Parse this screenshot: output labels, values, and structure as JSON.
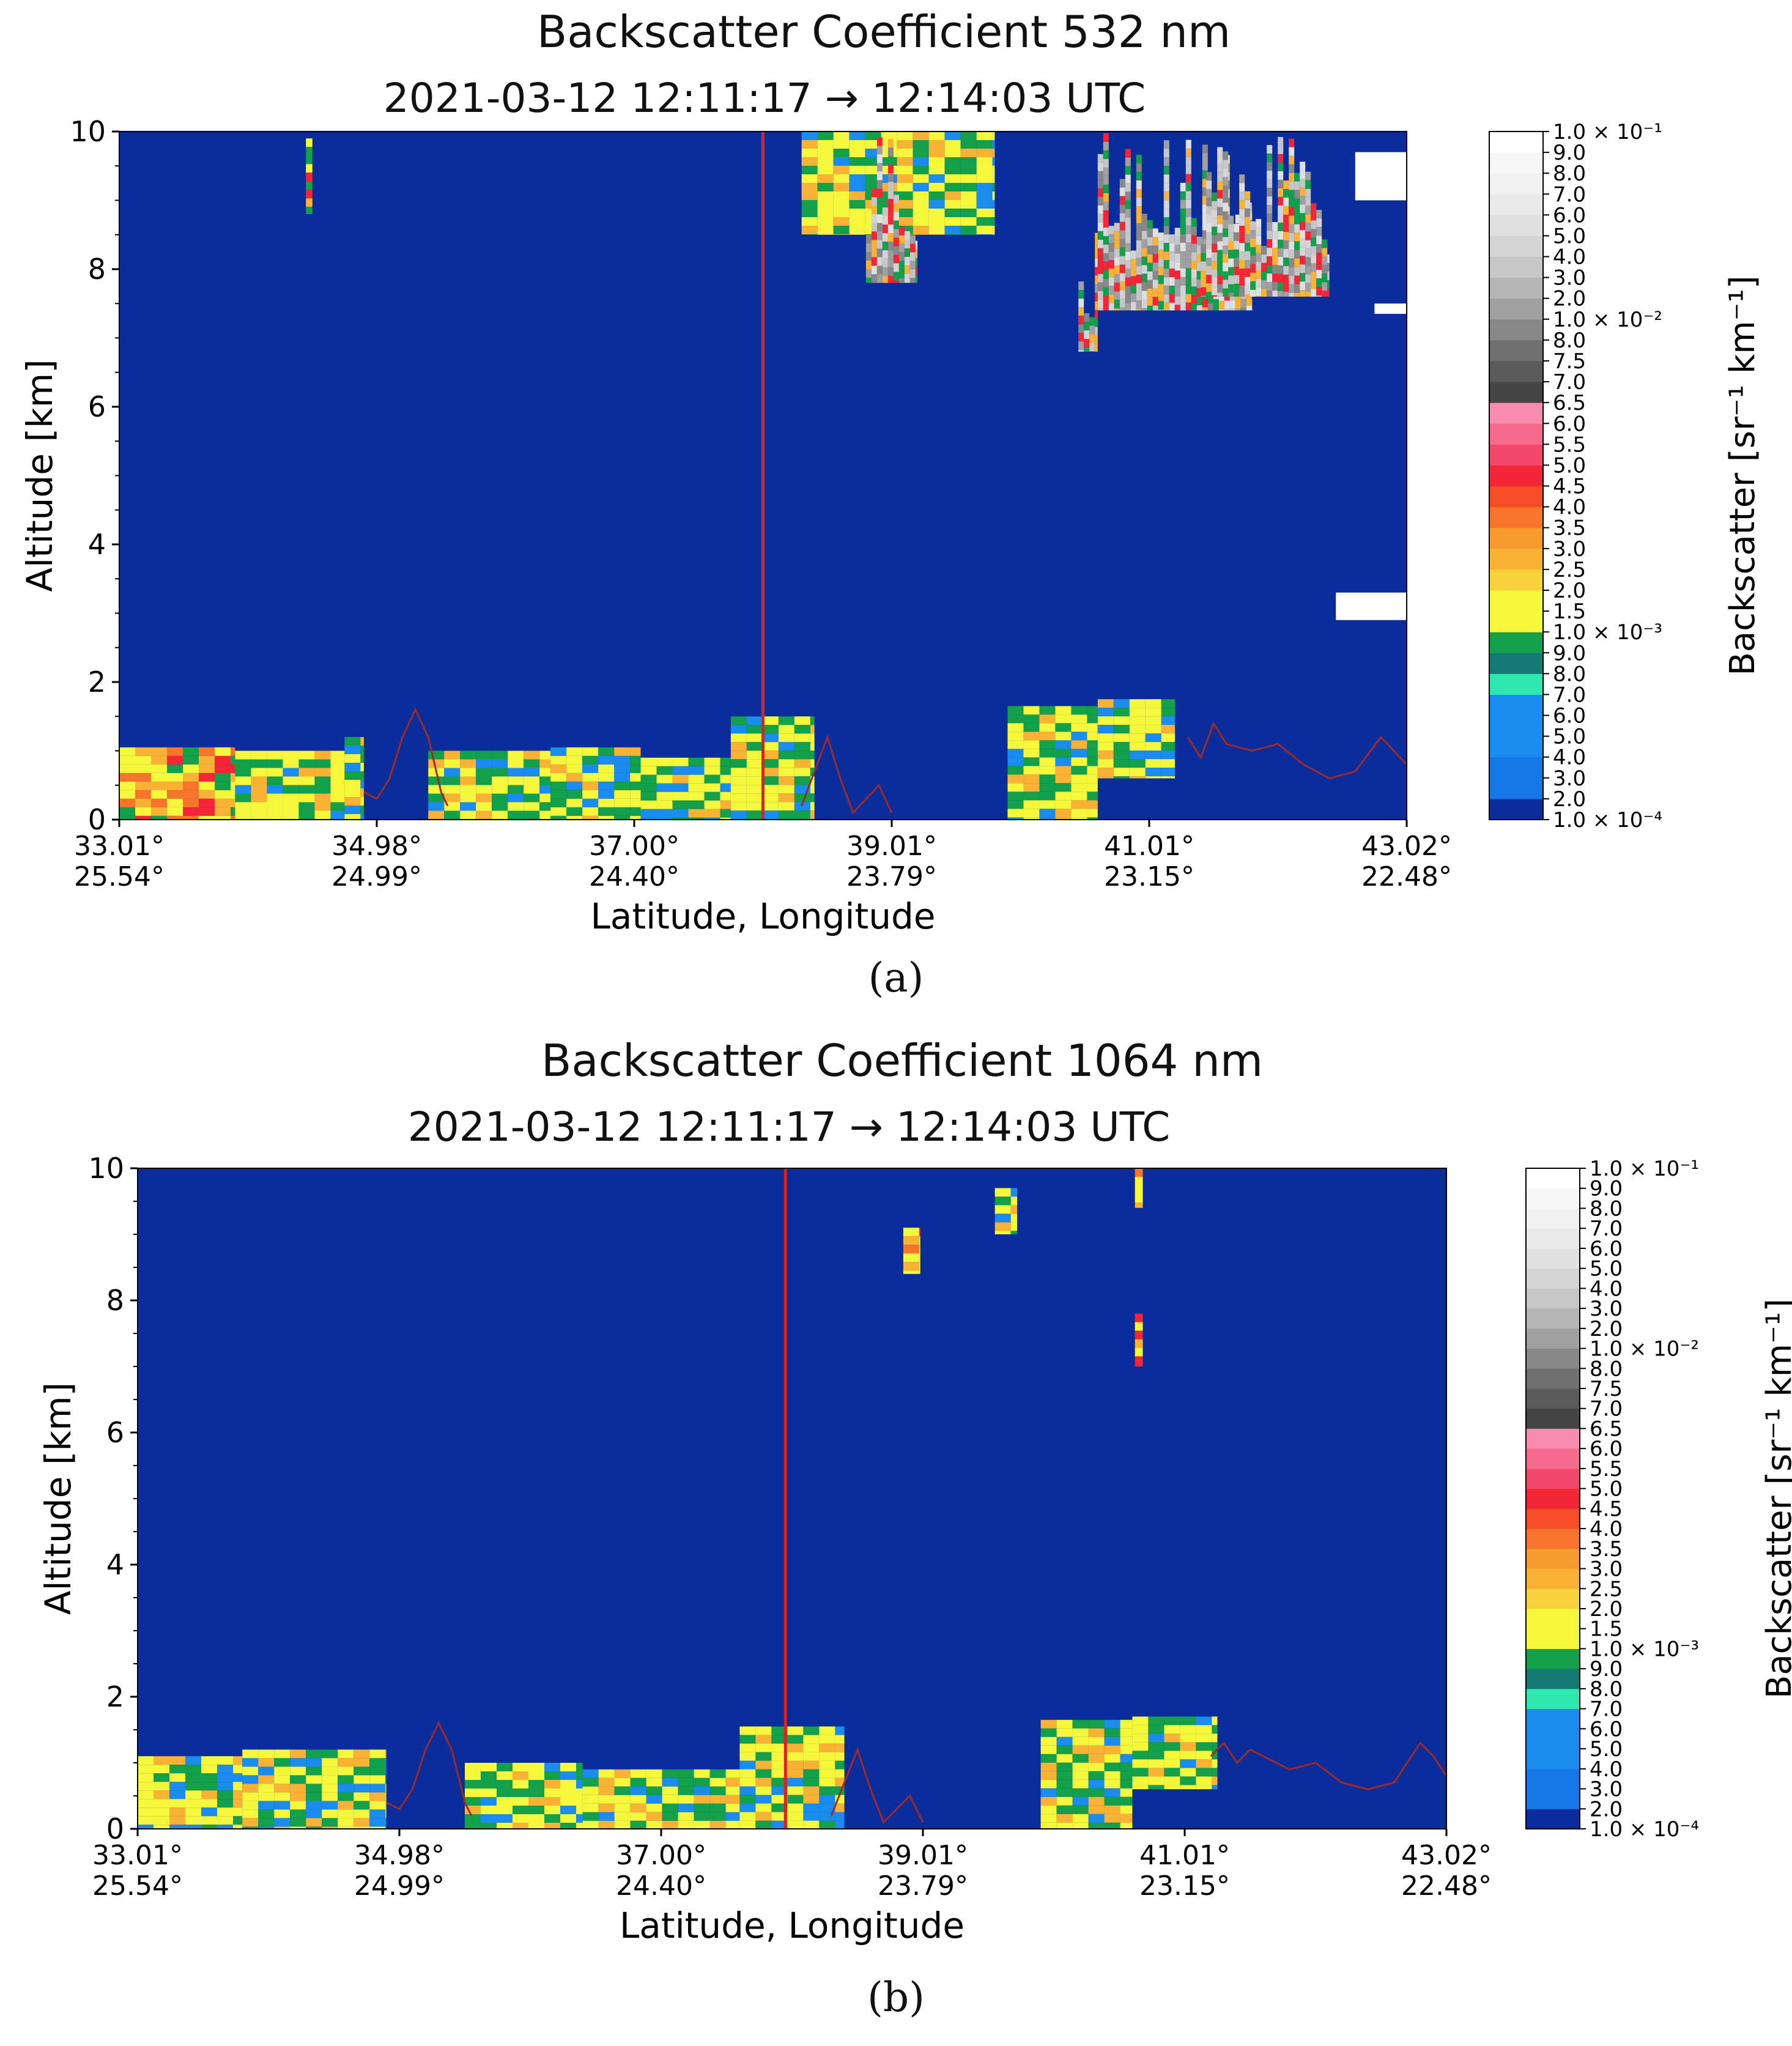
{
  "colors": {
    "background": "#0a2d9b",
    "profile_line": "#9c2a2a",
    "marker_line": "#e02020"
  },
  "colorbar": {
    "label": "Backscatter [sr⁻¹ km⁻¹]",
    "levels": [
      {
        "label": "1.0 × 10⁻⁴",
        "color": "#0a2d9b"
      },
      {
        "label": "2.0",
        "color": "#0a2d9b"
      },
      {
        "label": "3.0",
        "color": "#1477e6"
      },
      {
        "label": "4.0",
        "color": "#1477e6"
      },
      {
        "label": "5.0",
        "color": "#1a8cf0"
      },
      {
        "label": "6.0",
        "color": "#1a8cf0"
      },
      {
        "label": "7.0",
        "color": "#1a8cf0"
      },
      {
        "label": "8.0",
        "color": "#2ee8b0"
      },
      {
        "label": "9.0",
        "color": "#137a73"
      },
      {
        "label": "1.0 × 10⁻³",
        "color": "#12a04a"
      },
      {
        "label": "1.5",
        "color": "#f4f73a"
      },
      {
        "label": "2.0",
        "color": "#f4f73a"
      },
      {
        "label": "2.5",
        "color": "#f7d23a"
      },
      {
        "label": "3.0",
        "color": "#f9b234"
      },
      {
        "label": "3.5",
        "color": "#f89a2e"
      },
      {
        "label": "4.0",
        "color": "#f6752a"
      },
      {
        "label": "4.5",
        "color": "#f44d27"
      },
      {
        "label": "5.0",
        "color": "#f22636"
      },
      {
        "label": "5.5",
        "color": "#f4486a"
      },
      {
        "label": "6.0",
        "color": "#f66a8c"
      },
      {
        "label": "6.5",
        "color": "#f98ab0"
      },
      {
        "label": "7.0",
        "color": "#444444"
      },
      {
        "label": "7.5",
        "color": "#5a5a5a"
      },
      {
        "label": "8.0",
        "color": "#707070"
      },
      {
        "label": "1.0 × 10⁻²",
        "color": "#888888"
      },
      {
        "label": "2.0",
        "color": "#a0a0a0"
      },
      {
        "label": "3.0",
        "color": "#b5b5b5"
      },
      {
        "label": "4.0",
        "color": "#c6c6c6"
      },
      {
        "label": "5.0",
        "color": "#d4d4d4"
      },
      {
        "label": "6.0",
        "color": "#e0e0e0"
      },
      {
        "label": "7.0",
        "color": "#e9e9e9"
      },
      {
        "label": "8.0",
        "color": "#f1f1f1"
      },
      {
        "label": "9.0",
        "color": "#f7f7f7"
      },
      {
        "label": "1.0 × 10⁻¹",
        "color": "#ffffff"
      }
    ]
  },
  "chart_data": [
    {
      "panel": "(a)",
      "type": "heatmap",
      "title": "Backscatter Coefficient 532 nm",
      "subtitle": "2021-03-12 12:11:17 → 12:14:03 UTC",
      "xlabel": "Latitude, Longitude",
      "ylabel": "Altitude [km]",
      "xlim": [
        0,
        10
      ],
      "ylim": [
        0,
        10
      ],
      "yticks": [
        "0",
        "2",
        "4",
        "6",
        "8",
        "10"
      ],
      "xticks": [
        {
          "pos": 0,
          "lat": "33.01°",
          "lon": "25.54°"
        },
        {
          "pos": 2,
          "lat": "34.98°",
          "lon": "24.99°"
        },
        {
          "pos": 4,
          "lat": "37.00°",
          "lon": "24.40°"
        },
        {
          "pos": 6,
          "lat": "39.01°",
          "lon": "23.79°"
        },
        {
          "pos": 8,
          "lat": "41.01°",
          "lon": "23.15°"
        },
        {
          "pos": 10,
          "lat": "43.02°",
          "lon": "22.48°"
        }
      ],
      "marker_x": 5.0,
      "cloud_top_profile": {
        "x": [
          1.9,
          2.0,
          2.1,
          2.2,
          2.3,
          2.4,
          2.5,
          2.55,
          5.3,
          5.5,
          5.6,
          5.7,
          5.8,
          5.9,
          6.0,
          8.3,
          8.4,
          8.5,
          8.6,
          8.8,
          9.0,
          9.2,
          9.4,
          9.6,
          9.8,
          9.9,
          10.0
        ],
        "y": [
          0.4,
          0.3,
          0.6,
          1.2,
          1.6,
          1.2,
          0.4,
          0.2,
          0.2,
          1.2,
          0.6,
          0.1,
          0.3,
          0.5,
          0.1,
          1.2,
          0.9,
          1.4,
          1.1,
          1.0,
          1.1,
          0.8,
          0.6,
          0.7,
          1.2,
          1.0,
          0.8
        ]
      },
      "regions": [
        {
          "x0": 0.0,
          "x1": 0.9,
          "y0": 0.0,
          "y1": 1.05,
          "level": "3.0",
          "pattern": "mixed"
        },
        {
          "x0": 0.9,
          "x1": 1.75,
          "y0": 0.0,
          "y1": 1.0,
          "level": "2.0",
          "pattern": "mixed"
        },
        {
          "x0": 1.75,
          "x1": 1.9,
          "y0": 0.0,
          "y1": 1.2,
          "level": "1.5",
          "pattern": "mixed"
        },
        {
          "x0": 2.4,
          "x1": 3.35,
          "y0": 0.0,
          "y1": 1.0,
          "level": "1.5",
          "pattern": "mixed"
        },
        {
          "x0": 3.35,
          "x1": 4.05,
          "y0": 0.0,
          "y1": 1.05,
          "level": "1.5",
          "pattern": "mixed"
        },
        {
          "x0": 4.05,
          "x1": 4.75,
          "y0": 0.0,
          "y1": 0.9,
          "level": "1.5",
          "pattern": "mixed"
        },
        {
          "x0": 4.75,
          "x1": 5.4,
          "y0": 0.0,
          "y1": 1.5,
          "level": "2.0",
          "pattern": "mixed"
        },
        {
          "x0": 6.9,
          "x1": 7.6,
          "y0": 0.0,
          "y1": 1.65,
          "level": "1.5",
          "pattern": "mixed"
        },
        {
          "x0": 7.6,
          "x1": 8.2,
          "y0": 0.6,
          "y1": 1.75,
          "level": "1.5",
          "pattern": "mixed"
        },
        {
          "x0": 1.45,
          "x1": 1.5,
          "y0": 8.8,
          "y1": 9.9,
          "level": "4.0",
          "pattern": "mixed"
        },
        {
          "x0": 5.3,
          "x1": 6.8,
          "y0": 8.5,
          "y1": 10.0,
          "level": "1.5",
          "pattern": "mixed"
        },
        {
          "x0": 5.8,
          "x1": 6.2,
          "y0": 7.8,
          "y1": 10.0,
          "level": "4.0",
          "pattern": "cirrus"
        },
        {
          "x0": 7.45,
          "x1": 7.6,
          "y0": 6.8,
          "y1": 8.7,
          "level": "4.0",
          "pattern": "cirrus"
        },
        {
          "x0": 7.6,
          "x1": 8.8,
          "y0": 7.4,
          "y1": 10.0,
          "level": "4.0",
          "pattern": "cirrus"
        },
        {
          "x0": 8.4,
          "x1": 9.4,
          "y0": 7.6,
          "y1": 10.0,
          "level": "4.0",
          "pattern": "cirrus"
        },
        {
          "x0": 9.6,
          "x1": 10.0,
          "y0": 9.0,
          "y1": 9.7,
          "level": "1.0 × 10⁻¹",
          "pattern": "solid"
        },
        {
          "x0": 9.75,
          "x1": 10.0,
          "y0": 7.35,
          "y1": 7.5,
          "level": "1.0 × 10⁻¹",
          "pattern": "solid"
        },
        {
          "x0": 9.45,
          "x1": 10.0,
          "y0": 2.9,
          "y1": 3.3,
          "level": "1.0 × 10⁻¹",
          "pattern": "solid"
        }
      ]
    },
    {
      "panel": "(b)",
      "type": "heatmap",
      "title": "Backscatter Coefficient 1064 nm",
      "subtitle": "2021-03-12 12:11:17 → 12:14:03 UTC",
      "xlabel": "Latitude, Longitude",
      "ylabel": "Altitude [km]",
      "xlim": [
        0,
        10
      ],
      "ylim": [
        0,
        10
      ],
      "yticks": [
        "0",
        "2",
        "4",
        "6",
        "8",
        "10"
      ],
      "xticks": [
        {
          "pos": 0,
          "lat": "33.01°",
          "lon": "25.54°"
        },
        {
          "pos": 2,
          "lat": "34.98°",
          "lon": "24.99°"
        },
        {
          "pos": 4,
          "lat": "37.00°",
          "lon": "24.40°"
        },
        {
          "pos": 6,
          "lat": "39.01°",
          "lon": "23.79°"
        },
        {
          "pos": 8,
          "lat": "41.01°",
          "lon": "23.15°"
        },
        {
          "pos": 10,
          "lat": "43.02°",
          "lon": "22.48°"
        }
      ],
      "marker_x": 4.95,
      "cloud_top_profile": {
        "x": [
          1.9,
          2.0,
          2.1,
          2.2,
          2.3,
          2.4,
          2.5,
          2.55,
          5.3,
          5.5,
          5.6,
          5.7,
          5.8,
          5.9,
          6.0,
          8.2,
          8.3,
          8.4,
          8.5,
          8.6,
          8.8,
          9.0,
          9.2,
          9.4,
          9.6,
          9.8,
          9.9,
          10.0
        ],
        "y": [
          0.4,
          0.3,
          0.6,
          1.2,
          1.6,
          1.2,
          0.4,
          0.2,
          0.2,
          1.2,
          0.6,
          0.1,
          0.3,
          0.5,
          0.1,
          1.1,
          1.3,
          1.0,
          1.2,
          1.1,
          0.9,
          1.0,
          0.7,
          0.6,
          0.7,
          1.3,
          1.1,
          0.8
        ]
      },
      "regions": [
        {
          "x0": 0.0,
          "x1": 0.8,
          "y0": 0.0,
          "y1": 1.1,
          "level": "2.0",
          "pattern": "mixed"
        },
        {
          "x0": 0.8,
          "x1": 1.9,
          "y0": 0.0,
          "y1": 1.2,
          "level": "1.5",
          "pattern": "mixed"
        },
        {
          "x0": 2.5,
          "x1": 3.4,
          "y0": 0.0,
          "y1": 1.0,
          "level": "1.5",
          "pattern": "mixed"
        },
        {
          "x0": 3.4,
          "x1": 4.6,
          "y0": 0.0,
          "y1": 0.9,
          "level": "1.5",
          "pattern": "mixed"
        },
        {
          "x0": 4.6,
          "x1": 5.4,
          "y0": 0.0,
          "y1": 1.55,
          "level": "2.0",
          "pattern": "mixed"
        },
        {
          "x0": 6.9,
          "x1": 7.6,
          "y0": 0.0,
          "y1": 1.65,
          "level": "1.5",
          "pattern": "mixed"
        },
        {
          "x0": 7.6,
          "x1": 8.25,
          "y0": 0.6,
          "y1": 1.7,
          "level": "1.5",
          "pattern": "mixed"
        },
        {
          "x0": 5.85,
          "x1": 5.98,
          "y0": 8.4,
          "y1": 9.1,
          "level": "4.0",
          "pattern": "mixed"
        },
        {
          "x0": 6.55,
          "x1": 6.72,
          "y0": 9.0,
          "y1": 9.7,
          "level": "1.0 × 10⁻³",
          "pattern": "mixed"
        },
        {
          "x0": 7.62,
          "x1": 7.68,
          "y0": 9.4,
          "y1": 10.0,
          "level": "4.0",
          "pattern": "mixed"
        },
        {
          "x0": 7.62,
          "x1": 7.68,
          "y0": 7.0,
          "y1": 7.8,
          "level": "4.0",
          "pattern": "mixed"
        }
      ]
    }
  ]
}
